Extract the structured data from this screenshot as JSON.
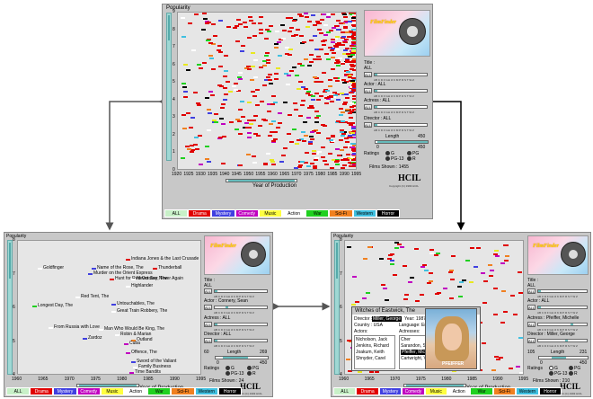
{
  "top": {
    "yaxis_label": "Popularity",
    "xaxis_label": "Year of Production",
    "y_ticks": [
      "0",
      "1",
      "2",
      "3",
      "4",
      "5",
      "6",
      "7",
      "8",
      "9"
    ],
    "x_ticks": [
      "1920",
      "1925",
      "1930",
      "1935",
      "1940",
      "1945",
      "1950",
      "1955",
      "1960",
      "1965",
      "1970",
      "1975",
      "1980",
      "1985",
      "1990",
      "1995"
    ],
    "title_label": "Title :",
    "title_value": "ALL",
    "actor_label": "Actor : ALL",
    "actress_label": "Actress : ALL",
    "director_label": "Director : ALL",
    "length_label": "Length",
    "length_min": "0",
    "length_max": "450",
    "length_right": "450",
    "ratings_label": "Ratings",
    "r_g": "G",
    "r_pg": "PG",
    "r_pg13": "PG-13",
    "r_r": "R",
    "films_shown": "Films Shown : 1455",
    "all_btn": "ALL",
    "letters": "AB C D F GH IJ K M P R S T W Z",
    "copyright": "Copyright (C) 1993 HCIL"
  },
  "left": {
    "yaxis_label": "Popularity",
    "xaxis_label": "Year of Production",
    "y_ticks": [
      "4",
      "5",
      "6",
      "7",
      "8"
    ],
    "x_ticks": [
      "1960",
      "1965",
      "1970",
      "1975",
      "1980",
      "1985",
      "1990",
      "1995"
    ],
    "title_label": "Title :",
    "title_value": "ALL",
    "actor_label": "Actor : Connery, Sean",
    "actress_label": "Actress : ALL",
    "director_label": "Director : ALL",
    "length_label": "Length",
    "length_min": "60",
    "length_max": "269",
    "length_lo": "0",
    "length_hi": "450",
    "ratings_label": "Ratings",
    "r_g": "G",
    "r_pg": "PG",
    "r_pg13": "PG-13",
    "r_r": "R",
    "films_shown": "Films Shown : 24",
    "all_btn": "ALL",
    "letters": "AB C D F GH IJ K M P R S T W Z",
    "copyright": "Copyright (C) 1993 HCIL",
    "films": [
      "Indiana Jones & the Last Crusade",
      "Goldfinger",
      "Name of the Rose, The",
      "Thunderball",
      "Murder on the Orient Express",
      "Hunt for Red October, The",
      "Never Say Never Again",
      "Highlander",
      "Red Tent, The",
      "Longest Day, The",
      "Untouchables, The",
      "Great Train Robbery, The",
      "From Russia with Love",
      "Man Who Would Be King, The",
      "Robin & Marian",
      "Outland",
      "Zardoz",
      "Cuba",
      "Offence, The",
      "Sword of the Valiant",
      "Family Business",
      "Time Bandits",
      "Meteor"
    ]
  },
  "right": {
    "yaxis_label": "Popularity",
    "xaxis_label": "Year of Production",
    "y_ticks": [
      "4",
      "5",
      "6",
      "7",
      "8"
    ],
    "x_ticks": [
      "1960",
      "1965",
      "1970",
      "1975",
      "1980",
      "1985",
      "1990",
      "1995"
    ],
    "title_label": "Title :",
    "title_value": "ALL",
    "actor_label": "Actor : ALL",
    "actress_label": "Actress : Pfeiffer, Michelle",
    "director_label": "Director : Miller, George",
    "length_label": "Length",
    "length_min": "105",
    "length_max": "231",
    "length_lo": "0",
    "length_hi": "450",
    "ratings_label": "Ratings",
    "r_g": "G",
    "r_pg": "PG",
    "r_pg13": "PG-13",
    "r_r": "R",
    "films_shown": "Films Shown : 210",
    "all_btn": "ALL",
    "letters": "AB C D F GH IJ K M P R S T W Z",
    "copyright": "Copyright (C) 1993 HCIL",
    "detail": {
      "title": "Witches of Eastwick, The",
      "director_label": "Director :",
      "director_value": "Miller, George",
      "year_label": "Year: 1987",
      "country_label": "Country : USA",
      "language_label": "Language: English",
      "actors_label": "Actors:",
      "actresses_label": "Actresses:",
      "actors": [
        "Nicholson, Jack",
        "Jenkins, Richard",
        "Joakum, Keith",
        "Shnyder, Carel"
      ],
      "actresses": [
        "Cher",
        "Sarandon, Susan",
        "Pfeiffer, Michelle",
        "Cartwright, Vero"
      ],
      "actress_highlight": "Pfeiffer, Michelle",
      "photo_caption": "PFEIFFER"
    }
  },
  "logo_text": "FilmFinder",
  "hcil": "HCIL",
  "genres": [
    {
      "name": "ALL",
      "bg": "#c8f0c8",
      "fg": "#000"
    },
    {
      "name": "Drama",
      "bg": "#e00000",
      "fg": "#fff"
    },
    {
      "name": "Mystery",
      "bg": "#4040e0",
      "fg": "#fff"
    },
    {
      "name": "Comedy",
      "bg": "#c000c0",
      "fg": "#fff"
    },
    {
      "name": "Music",
      "bg": "#ffff40",
      "fg": "#000"
    },
    {
      "name": "Action",
      "bg": "#ffffff",
      "fg": "#000"
    },
    {
      "name": "War",
      "bg": "#20d020",
      "fg": "#000"
    },
    {
      "name": "Sci-Fi",
      "bg": "#f08020",
      "fg": "#000"
    },
    {
      "name": "Western",
      "bg": "#40c0e0",
      "fg": "#000"
    },
    {
      "name": "Horror",
      "bg": "#000000",
      "fg": "#fff"
    }
  ],
  "colors": {
    "drama": "#e00000",
    "mystery": "#4040e0",
    "comedy": "#c000c0",
    "music": "#e8e820",
    "action": "#ffffff",
    "war": "#20d020",
    "scifi": "#f08020",
    "western": "#40c0e0",
    "horror": "#000000"
  }
}
